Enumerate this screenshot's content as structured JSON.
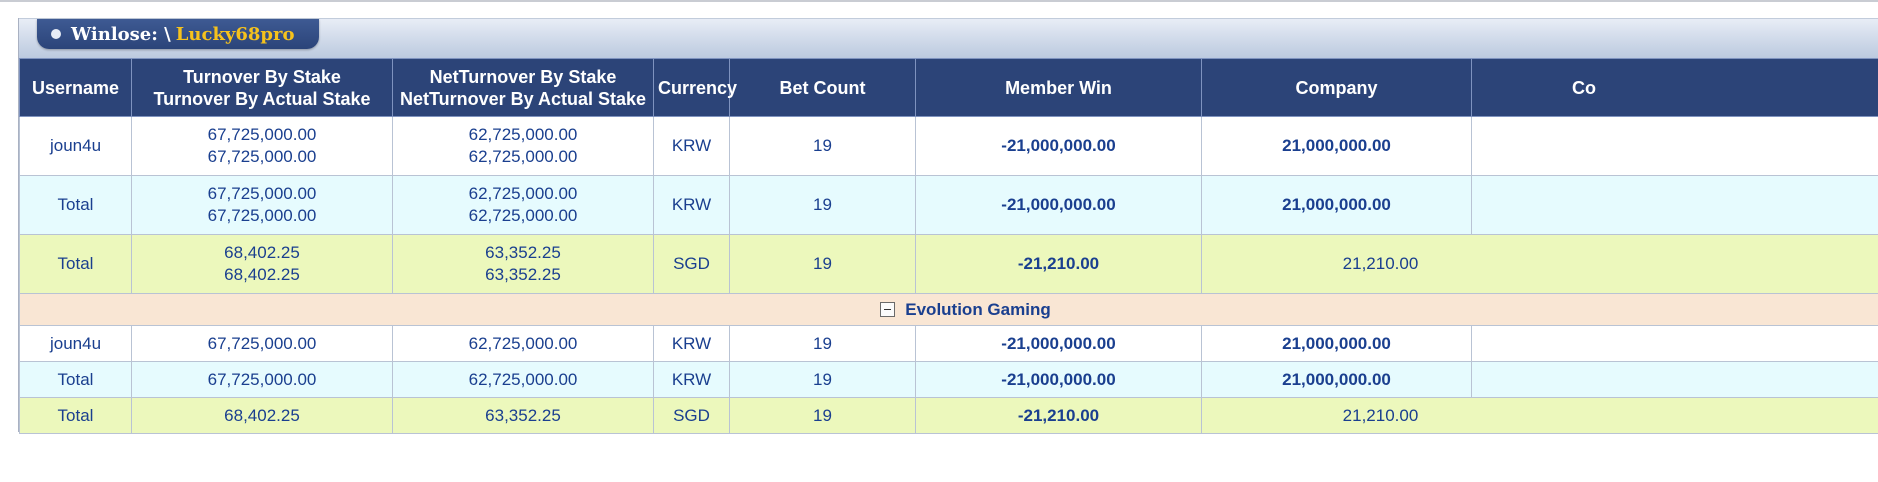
{
  "title": {
    "prefix": "Winlose: \\",
    "user": "Lucky68pro"
  },
  "columns": [
    {
      "label": "Username"
    },
    {
      "label1": "Turnover By Stake",
      "label2": "Turnover By Actual Stake"
    },
    {
      "label1": "NetTurnover By Stake",
      "label2": "NetTurnover By Actual Stake"
    },
    {
      "label": "Currency"
    },
    {
      "label": "Bet Count"
    },
    {
      "label": "Member Win"
    },
    {
      "label": "Company"
    },
    {
      "label": "Co"
    }
  ],
  "summary_rows": [
    {
      "username": "joun4u",
      "turnover_stake": "67,725,000.00",
      "turnover_actual": "67,725,000.00",
      "net_stake": "62,725,000.00",
      "net_actual": "62,725,000.00",
      "currency": "KRW",
      "bet_count": "19",
      "member_win": "-21,000,000.00",
      "company": "21,000,000.00"
    },
    {
      "username": "Total",
      "turnover_stake": "67,725,000.00",
      "turnover_actual": "67,725,000.00",
      "net_stake": "62,725,000.00",
      "net_actual": "62,725,000.00",
      "currency": "KRW",
      "bet_count": "19",
      "member_win": "-21,000,000.00",
      "company": "21,000,000.00"
    },
    {
      "username": "Total",
      "turnover_stake": "68,402.25",
      "turnover_actual": "68,402.25",
      "net_stake": "63,352.25",
      "net_actual": "63,352.25",
      "currency": "SGD",
      "bet_count": "19",
      "member_win": "-21,210.00",
      "company": "21,210.00"
    }
  ],
  "group": {
    "name": "Evolution Gaming",
    "rows": [
      {
        "username": "joun4u",
        "turnover": "67,725,000.00",
        "net": "62,725,000.00",
        "currency": "KRW",
        "bet_count": "19",
        "member_win": "-21,000,000.00",
        "company": "21,000,000.00"
      },
      {
        "username": "Total",
        "turnover": "67,725,000.00",
        "net": "62,725,000.00",
        "currency": "KRW",
        "bet_count": "19",
        "member_win": "-21,000,000.00",
        "company": "21,000,000.00"
      },
      {
        "username": "Total",
        "turnover": "68,402.25",
        "net": "63,352.25",
        "currency": "SGD",
        "bet_count": "19",
        "member_win": "-21,210.00",
        "company": "21,210.00"
      }
    ]
  },
  "colors": {
    "header_bg": "#2c4478",
    "negative": "#e0101a",
    "positive": "#1a3591",
    "link": "#3f6fc7",
    "row_blue": "#e6fbfe",
    "row_green": "#ecf8bc",
    "group_bg": "#f9e6d4",
    "title_user": "#f6c21c"
  },
  "icons": {
    "title": "bullet-dot-icon",
    "group_toggle": "collapse-minus-icon"
  }
}
